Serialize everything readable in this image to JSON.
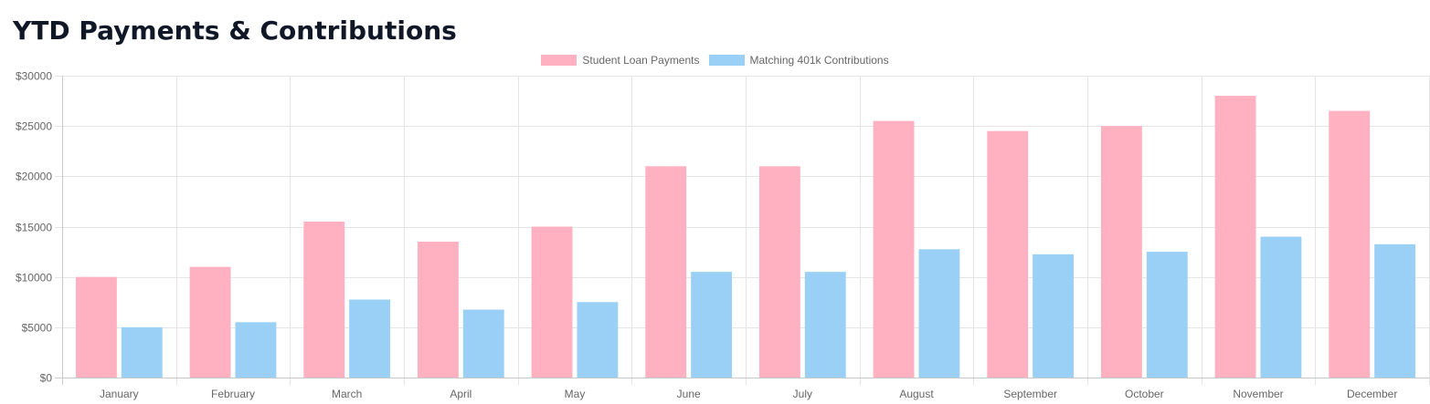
{
  "page": {
    "title": "YTD Payments & Contributions"
  },
  "chart_data": {
    "type": "bar",
    "title": "",
    "xlabel": "",
    "ylabel": "",
    "categories": [
      "January",
      "February",
      "March",
      "April",
      "May",
      "June",
      "July",
      "August",
      "September",
      "October",
      "November",
      "December"
    ],
    "series": [
      {
        "name": "Student Loan Payments",
        "color": "#ffb1c1",
        "values": [
          10000,
          11000,
          15500,
          13500,
          15000,
          21000,
          21000,
          25500,
          24500,
          25000,
          28000,
          26500
        ]
      },
      {
        "name": "Matching 401k Contributions",
        "color": "#9ad0f5",
        "values": [
          5000,
          5500,
          7750,
          6750,
          7500,
          10500,
          10500,
          12750,
          12250,
          12500,
          14000,
          13250
        ]
      }
    ],
    "ylim": [
      0,
      30000
    ],
    "y_ticks": [
      0,
      5000,
      10000,
      15000,
      20000,
      25000,
      30000
    ],
    "y_tick_prefix": "$",
    "grid": true,
    "legend_position": "top-center"
  }
}
